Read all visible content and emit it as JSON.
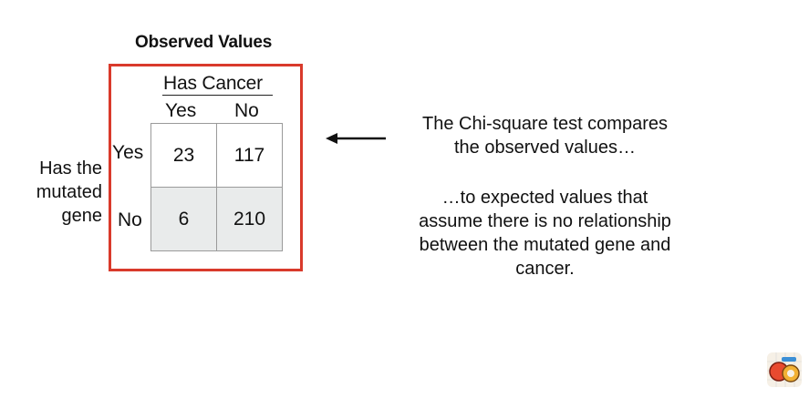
{
  "table": {
    "title": "Observed Values",
    "column_group_label": "Has Cancer",
    "column_headers": [
      "Yes",
      "No"
    ],
    "row_headers": [
      "Yes",
      "No"
    ],
    "row_group_label": [
      "Has the",
      "mutated",
      "gene"
    ],
    "cells": [
      [
        "23",
        "117"
      ],
      [
        "6",
        "210"
      ]
    ]
  },
  "annotation": {
    "line1": "The Chi-square test compares",
    "line2": "the observed values…",
    "line3": "…to expected values that",
    "line4": "assume there is no relationship",
    "line5": "between the mutated gene and",
    "line6": "cancer."
  },
  "colors": {
    "highlight_border": "#d93a2b",
    "shaded_row": "#e9ebeb"
  }
}
